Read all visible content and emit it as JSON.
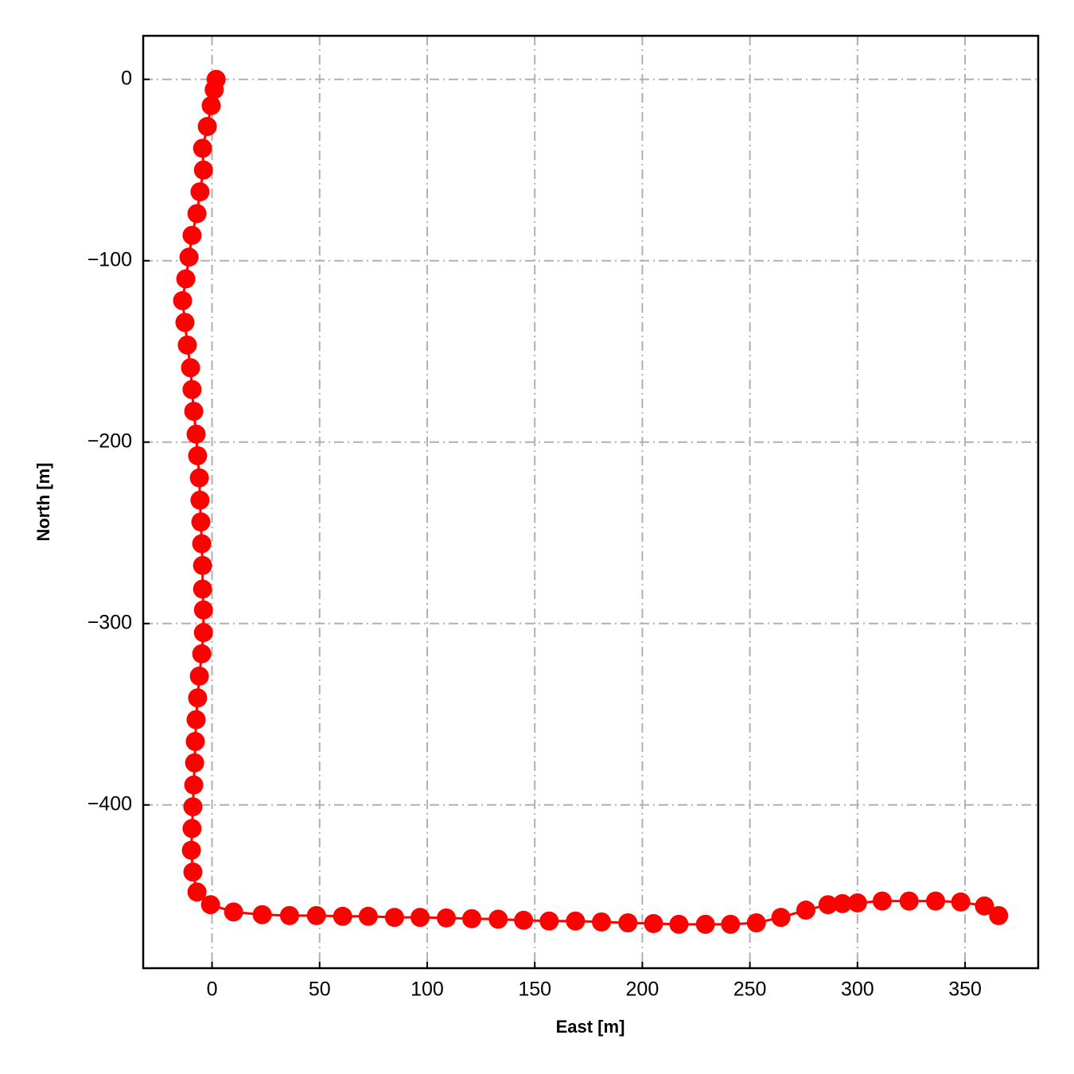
{
  "chart_data": {
    "type": "line",
    "xlabel": "East [m]",
    "ylabel": "North [m]",
    "x": [
      1.9,
      1,
      -0.4,
      -2.2,
      -4.4,
      -4,
      -5.6,
      -7,
      -9.3,
      -10.7,
      -12.2,
      -13.7,
      -12.6,
      -11.5,
      -10,
      -9.3,
      -8.5,
      -7.4,
      -6.7,
      -5.9,
      -5.6,
      -5.2,
      -4.8,
      -4.4,
      -4.4,
      -4,
      -4,
      -4.8,
      -5.9,
      -6.7,
      -7.4,
      -7.8,
      -8.1,
      -8.5,
      -8.9,
      -9.3,
      -9.6,
      -8.9,
      -7,
      -0.7,
      10,
      23.3,
      36,
      48.5,
      60.7,
      72.6,
      84.8,
      96.7,
      108.9,
      120.7,
      133,
      144.8,
      156.7,
      168.9,
      181,
      193.3,
      205.2,
      217,
      229.3,
      241,
      253,
      264.4,
      276,
      286.3,
      293,
      300,
      311.5,
      324,
      336.3,
      348,
      359,
      365.6
    ],
    "series": [
      {
        "color": "#ff0000",
        "values": [
          0,
          -5.7,
          -14.5,
          -26,
          -38,
          -50,
          -62,
          -74,
          -86,
          -98,
          -110,
          -122,
          -134,
          -146.5,
          -159,
          -171,
          -183,
          -195.6,
          -207.5,
          -219.7,
          -232,
          -244,
          -256,
          -268,
          -281,
          -292.5,
          -305,
          -316.7,
          -329,
          -341,
          -353,
          -365,
          -376.8,
          -389,
          -401,
          -413,
          -425,
          -437,
          -448,
          -455,
          -459,
          -460.5,
          -461,
          -461,
          -461.4,
          -461.4,
          -462,
          -462,
          -462.3,
          -462.7,
          -463,
          -463.6,
          -464,
          -464,
          -464.5,
          -465,
          -465.4,
          -465.8,
          -465.8,
          -465.8,
          -465,
          -462,
          -458,
          -455,
          -454.4,
          -454,
          -453,
          -453,
          -453,
          -453.5,
          -455.7,
          -461
        ]
      }
    ],
    "xlim": [
      -32,
      384
    ],
    "xticks": [
      0,
      50,
      100,
      150,
      200,
      250,
      300,
      350
    ],
    "ylim": [
      -490,
      24
    ],
    "yticks": [
      0,
      {
        "value": -100,
        "label": "−100"
      },
      {
        "value": -200,
        "label": "−200"
      },
      {
        "value": -300,
        "label": "−300"
      },
      {
        "value": -400,
        "label": "−400"
      }
    ],
    "grid": true,
    "markers": true
  }
}
